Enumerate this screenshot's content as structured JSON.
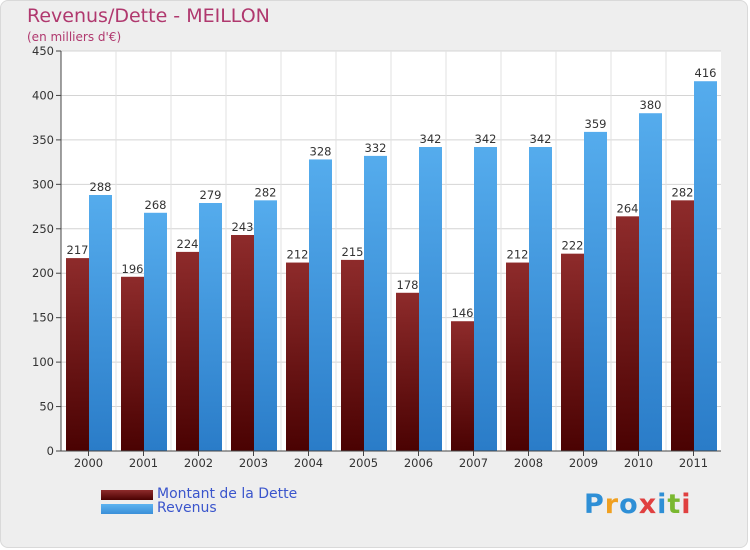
{
  "chart_data": {
    "type": "bar",
    "title": "Revenus/Dette - MEILLON",
    "subtitle": "(en milliers d'€)",
    "categories": [
      "2000",
      "2001",
      "2002",
      "2003",
      "2004",
      "2005",
      "2006",
      "2007",
      "2008",
      "2009",
      "2010",
      "2011"
    ],
    "series": [
      {
        "name": "Montant de la Dette",
        "values": [
          217,
          196,
          224,
          243,
          212,
          215,
          178,
          146,
          212,
          222,
          264,
          282
        ],
        "color": "#7a1515"
      },
      {
        "name": "Revenus",
        "values": [
          288,
          268,
          279,
          282,
          328,
          332,
          342,
          342,
          342,
          359,
          380,
          416
        ],
        "color": "#4aa3e8"
      }
    ],
    "ylim": [
      0,
      450
    ],
    "yticks": [
      0,
      50,
      100,
      150,
      200,
      250,
      300,
      350,
      400,
      450
    ],
    "grid": true,
    "legend": "bottom-left"
  },
  "logo": {
    "text": "Proxiti",
    "letters": [
      "P",
      "r",
      "o",
      "x",
      "i",
      "t",
      "i"
    ],
    "colors": [
      "#2e8fd6",
      "#f0a020",
      "#2e8fd6",
      "#e04040",
      "#2e8fd6",
      "#7ab830",
      "#e04040"
    ]
  }
}
